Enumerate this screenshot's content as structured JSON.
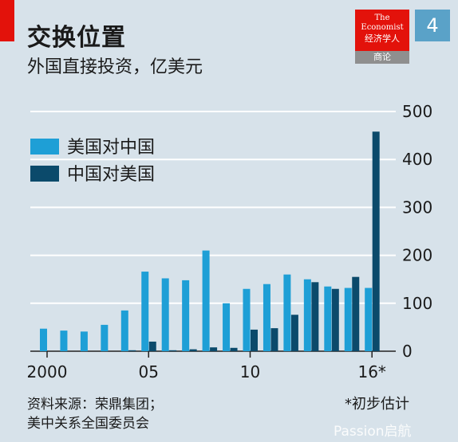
{
  "header": {
    "title": "交换位置",
    "subtitle": "外国直接投资，亿美元",
    "page_number": "4"
  },
  "logo": {
    "line1": "The",
    "line2": "Economist",
    "line3": "经济学人",
    "sub": "商论"
  },
  "footer": {
    "source_line1": "资料来源：荣鼎集团；",
    "source_line2": "美中关系全国委员会",
    "note": "*初步估计",
    "watermark": "Passion启航"
  },
  "colors": {
    "us_to_china": "#1e9fd6",
    "china_to_us": "#0b4a6b",
    "background": "#d7e2ea",
    "accent": "#e3120b"
  },
  "chart_data": {
    "type": "bar",
    "title": "交换位置",
    "subtitle": "外国直接投资，亿美元",
    "x": [
      2000,
      2001,
      2002,
      2003,
      2004,
      2005,
      2006,
      2007,
      2008,
      2009,
      2010,
      2011,
      2012,
      2013,
      2014,
      2015,
      2016
    ],
    "x_tick_labels": [
      {
        "x": 2000,
        "label": "2000"
      },
      {
        "x": 2005,
        "label": "05"
      },
      {
        "x": 2010,
        "label": "10"
      },
      {
        "x": 2016,
        "label": "16*"
      }
    ],
    "series": [
      {
        "name": "美国对中国",
        "color": "#1e9fd6",
        "values": [
          47,
          43,
          41,
          55,
          85,
          166,
          152,
          148,
          210,
          100,
          130,
          140,
          160,
          150,
          135,
          132,
          132
        ]
      },
      {
        "name": "中国对美国",
        "color": "#0b4a6b",
        "values": [
          0,
          0,
          0,
          0,
          2,
          20,
          2,
          4,
          8,
          7,
          45,
          48,
          76,
          144,
          130,
          155,
          458
        ]
      }
    ],
    "ylim": [
      0,
      500
    ],
    "yticks": [
      0,
      100,
      200,
      300,
      400,
      500
    ],
    "y_axis_side": "right",
    "grid": true,
    "legend_position": "top-left"
  }
}
